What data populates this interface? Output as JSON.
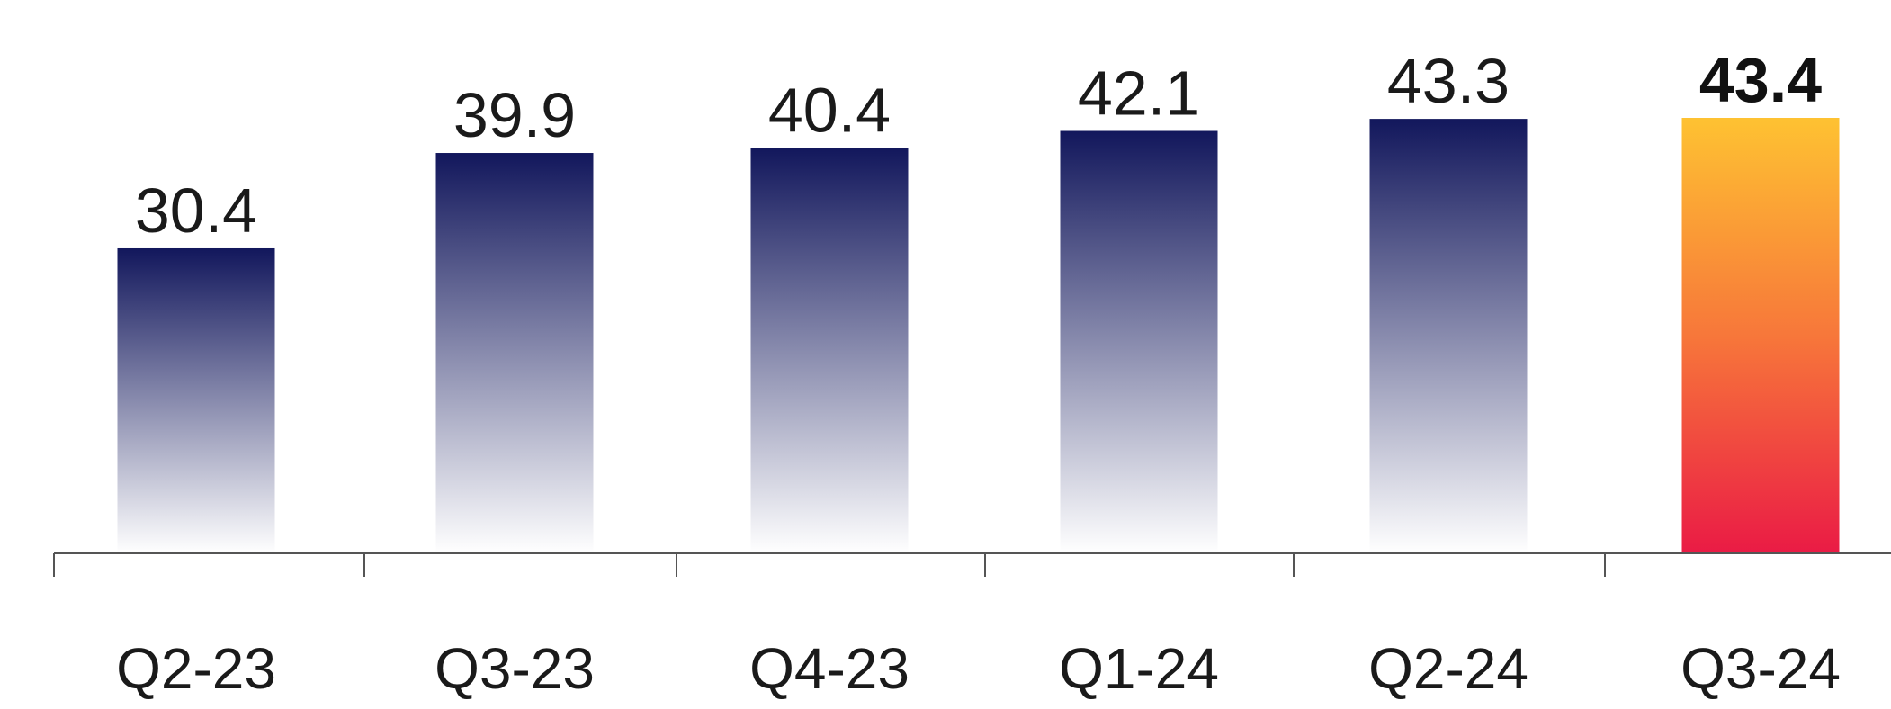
{
  "chart_data": {
    "type": "bar",
    "title": "",
    "xlabel": "",
    "ylabel": "",
    "categories": [
      "Q2-23",
      "Q3-23",
      "Q4-23",
      "Q1-24",
      "Q2-24",
      "Q3-24"
    ],
    "values": [
      30.4,
      39.9,
      40.4,
      42.1,
      43.3,
      43.4
    ],
    "value_labels": [
      "30.4",
      "39.9",
      "40.4",
      "42.1",
      "43.3",
      "43.4"
    ],
    "highlight_index": 5,
    "ylim": [
      0,
      50
    ],
    "grid": false,
    "legend": "none"
  },
  "colors": {
    "bar_top": "#12175c",
    "bar_bottom": "#ffffff",
    "highlight_top": "#fec232",
    "highlight_mid": "#f7773a",
    "highlight_bottom": "#ea1b45",
    "axis": "#555555",
    "text": "#1a1a1a"
  }
}
